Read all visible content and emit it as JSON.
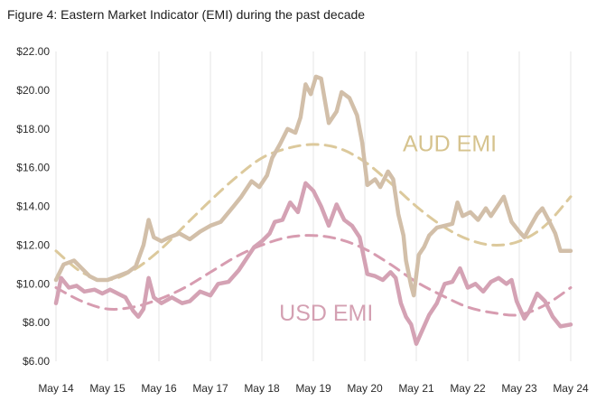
{
  "figure": {
    "title": "Figure 4: Eastern Market Indicator (EMI) during the past decade"
  },
  "colors": {
    "aud": "#d2bfa9",
    "aud_trend": "#dcc99c",
    "aud_label": "#d6c38e",
    "usd": "#d4a2b4",
    "usd_trend": "#d79cb0",
    "usd_label": "#d4a0b2",
    "grid": "#e6e6e6"
  },
  "chart_data": {
    "type": "line",
    "title": "Eastern Market Indicator (EMI) during the past decade",
    "xlabel": "",
    "ylabel": "",
    "grid": true,
    "x_ticks": [
      "May 14",
      "May 15",
      "May 16",
      "May 17",
      "May 18",
      "May 19",
      "May 20",
      "May 21",
      "May 22",
      "May 23",
      "May 24"
    ],
    "y_ticks": [
      "$6.00",
      "$8.00",
      "$10.00",
      "$12.00",
      "$14.00",
      "$16.00",
      "$18.00",
      "$20.00",
      "$22.00"
    ],
    "ylim": [
      6,
      22
    ],
    "xlim": [
      0,
      10
    ],
    "series": [
      {
        "name": "AUD EMI",
        "style": "solid",
        "points": [
          [
            0,
            10.2
          ],
          [
            0.15,
            11.0
          ],
          [
            0.35,
            11.2
          ],
          [
            0.5,
            10.8
          ],
          [
            0.65,
            10.4
          ],
          [
            0.8,
            10.2
          ],
          [
            1.0,
            10.2
          ],
          [
            1.2,
            10.4
          ],
          [
            1.4,
            10.6
          ],
          [
            1.55,
            10.9
          ],
          [
            1.7,
            12.0
          ],
          [
            1.8,
            13.3
          ],
          [
            1.9,
            12.4
          ],
          [
            2.05,
            12.2
          ],
          [
            2.2,
            12.4
          ],
          [
            2.4,
            12.6
          ],
          [
            2.6,
            12.3
          ],
          [
            2.8,
            12.7
          ],
          [
            3.0,
            13.0
          ],
          [
            3.2,
            13.2
          ],
          [
            3.45,
            14.0
          ],
          [
            3.6,
            14.5
          ],
          [
            3.8,
            15.3
          ],
          [
            3.95,
            15.0
          ],
          [
            4.1,
            15.6
          ],
          [
            4.2,
            16.5
          ],
          [
            4.35,
            17.2
          ],
          [
            4.5,
            18.0
          ],
          [
            4.65,
            17.8
          ],
          [
            4.75,
            18.6
          ],
          [
            4.85,
            20.3
          ],
          [
            4.95,
            19.8
          ],
          [
            5.05,
            20.7
          ],
          [
            5.15,
            20.6
          ],
          [
            5.3,
            18.3
          ],
          [
            5.45,
            18.9
          ],
          [
            5.55,
            19.9
          ],
          [
            5.7,
            19.6
          ],
          [
            5.85,
            18.7
          ],
          [
            5.95,
            17.3
          ],
          [
            6.05,
            15.1
          ],
          [
            6.2,
            15.4
          ],
          [
            6.3,
            15.0
          ],
          [
            6.45,
            15.8
          ],
          [
            6.55,
            15.4
          ],
          [
            6.65,
            13.6
          ],
          [
            6.75,
            12.5
          ],
          [
            6.8,
            11.2
          ],
          [
            6.9,
            9.9
          ],
          [
            6.95,
            9.4
          ],
          [
            7.05,
            11.5
          ],
          [
            7.15,
            11.9
          ],
          [
            7.25,
            12.5
          ],
          [
            7.4,
            12.9
          ],
          [
            7.55,
            13.0
          ],
          [
            7.7,
            13.1
          ],
          [
            7.8,
            14.2
          ],
          [
            7.9,
            13.5
          ],
          [
            8.05,
            13.7
          ],
          [
            8.2,
            13.3
          ],
          [
            8.35,
            13.9
          ],
          [
            8.45,
            13.5
          ],
          [
            8.6,
            14.1
          ],
          [
            8.7,
            14.5
          ],
          [
            8.85,
            13.2
          ],
          [
            9.0,
            12.7
          ],
          [
            9.1,
            12.4
          ],
          [
            9.2,
            12.9
          ],
          [
            9.35,
            13.6
          ],
          [
            9.45,
            13.9
          ],
          [
            9.55,
            13.4
          ],
          [
            9.7,
            12.6
          ],
          [
            9.8,
            11.7
          ],
          [
            10.0,
            11.7
          ]
        ]
      },
      {
        "name": "USD EMI",
        "style": "solid",
        "points": [
          [
            0,
            9.0
          ],
          [
            0.1,
            10.3
          ],
          [
            0.25,
            9.8
          ],
          [
            0.4,
            9.9
          ],
          [
            0.55,
            9.6
          ],
          [
            0.75,
            9.7
          ],
          [
            0.9,
            9.5
          ],
          [
            1.05,
            9.7
          ],
          [
            1.2,
            9.5
          ],
          [
            1.35,
            9.3
          ],
          [
            1.5,
            8.6
          ],
          [
            1.6,
            8.3
          ],
          [
            1.7,
            8.7
          ],
          [
            1.8,
            10.3
          ],
          [
            1.9,
            9.3
          ],
          [
            2.05,
            9.0
          ],
          [
            2.25,
            9.3
          ],
          [
            2.45,
            9.0
          ],
          [
            2.6,
            9.1
          ],
          [
            2.8,
            9.6
          ],
          [
            3.0,
            9.4
          ],
          [
            3.15,
            10.0
          ],
          [
            3.35,
            10.1
          ],
          [
            3.55,
            10.7
          ],
          [
            3.7,
            11.3
          ],
          [
            3.85,
            11.9
          ],
          [
            4.0,
            12.2
          ],
          [
            4.15,
            12.6
          ],
          [
            4.25,
            13.2
          ],
          [
            4.4,
            13.3
          ],
          [
            4.55,
            14.2
          ],
          [
            4.7,
            13.7
          ],
          [
            4.85,
            15.2
          ],
          [
            5.0,
            14.8
          ],
          [
            5.15,
            14.0
          ],
          [
            5.3,
            13.0
          ],
          [
            5.45,
            14.1
          ],
          [
            5.6,
            13.3
          ],
          [
            5.75,
            13.0
          ],
          [
            5.9,
            12.4
          ],
          [
            6.05,
            10.5
          ],
          [
            6.2,
            10.4
          ],
          [
            6.35,
            10.2
          ],
          [
            6.5,
            10.6
          ],
          [
            6.6,
            10.3
          ],
          [
            6.7,
            9.0
          ],
          [
            6.8,
            8.3
          ],
          [
            6.9,
            7.9
          ],
          [
            7.0,
            6.9
          ],
          [
            7.1,
            7.5
          ],
          [
            7.25,
            8.4
          ],
          [
            7.4,
            9.0
          ],
          [
            7.55,
            10.0
          ],
          [
            7.7,
            10.1
          ],
          [
            7.85,
            10.8
          ],
          [
            8.0,
            9.8
          ],
          [
            8.15,
            10.0
          ],
          [
            8.3,
            9.6
          ],
          [
            8.45,
            10.1
          ],
          [
            8.6,
            10.3
          ],
          [
            8.75,
            10.0
          ],
          [
            8.85,
            10.2
          ],
          [
            8.95,
            9.1
          ],
          [
            9.1,
            8.2
          ],
          [
            9.2,
            8.6
          ],
          [
            9.35,
            9.5
          ],
          [
            9.5,
            9.1
          ],
          [
            9.65,
            8.3
          ],
          [
            9.8,
            7.8
          ],
          [
            10.0,
            7.9
          ]
        ]
      },
      {
        "name": "",
        "style": "dashed",
        "role": "AUD EMI trend",
        "points": [
          [
            0,
            11.7
          ],
          [
            0.5,
            10.6
          ],
          [
            1.0,
            10.2
          ],
          [
            1.5,
            10.7
          ],
          [
            2.0,
            11.7
          ],
          [
            2.5,
            13.0
          ],
          [
            3.0,
            14.3
          ],
          [
            3.5,
            15.5
          ],
          [
            4.0,
            16.5
          ],
          [
            4.5,
            17.0
          ],
          [
            5.0,
            17.2
          ],
          [
            5.5,
            17.0
          ],
          [
            6.0,
            16.3
          ],
          [
            6.5,
            15.2
          ],
          [
            7.0,
            14.0
          ],
          [
            7.5,
            13.0
          ],
          [
            8.0,
            12.3
          ],
          [
            8.5,
            12.0
          ],
          [
            9.0,
            12.2
          ],
          [
            9.5,
            13.0
          ],
          [
            10.0,
            14.5
          ]
        ]
      },
      {
        "name": "",
        "style": "dashed",
        "role": "USD EMI trend",
        "points": [
          [
            0,
            9.8
          ],
          [
            0.5,
            9.1
          ],
          [
            1.0,
            8.7
          ],
          [
            1.5,
            8.8
          ],
          [
            2.0,
            9.2
          ],
          [
            2.5,
            9.8
          ],
          [
            3.0,
            10.6
          ],
          [
            3.5,
            11.4
          ],
          [
            4.0,
            12.0
          ],
          [
            4.5,
            12.4
          ],
          [
            5.0,
            12.5
          ],
          [
            5.5,
            12.3
          ],
          [
            6.0,
            11.8
          ],
          [
            6.5,
            11.0
          ],
          [
            7.0,
            10.1
          ],
          [
            7.5,
            9.4
          ],
          [
            8.0,
            8.8
          ],
          [
            8.5,
            8.5
          ],
          [
            9.0,
            8.4
          ],
          [
            9.5,
            8.9
          ],
          [
            10.0,
            9.8
          ]
        ]
      }
    ],
    "annotations": [
      {
        "text": "AUD EMI",
        "at": [
          7.65,
          16.85
        ],
        "color_key": "aud_label"
      },
      {
        "text": "USD EMI",
        "at": [
          5.25,
          8.1
        ],
        "color_key": "usd_label"
      }
    ]
  }
}
